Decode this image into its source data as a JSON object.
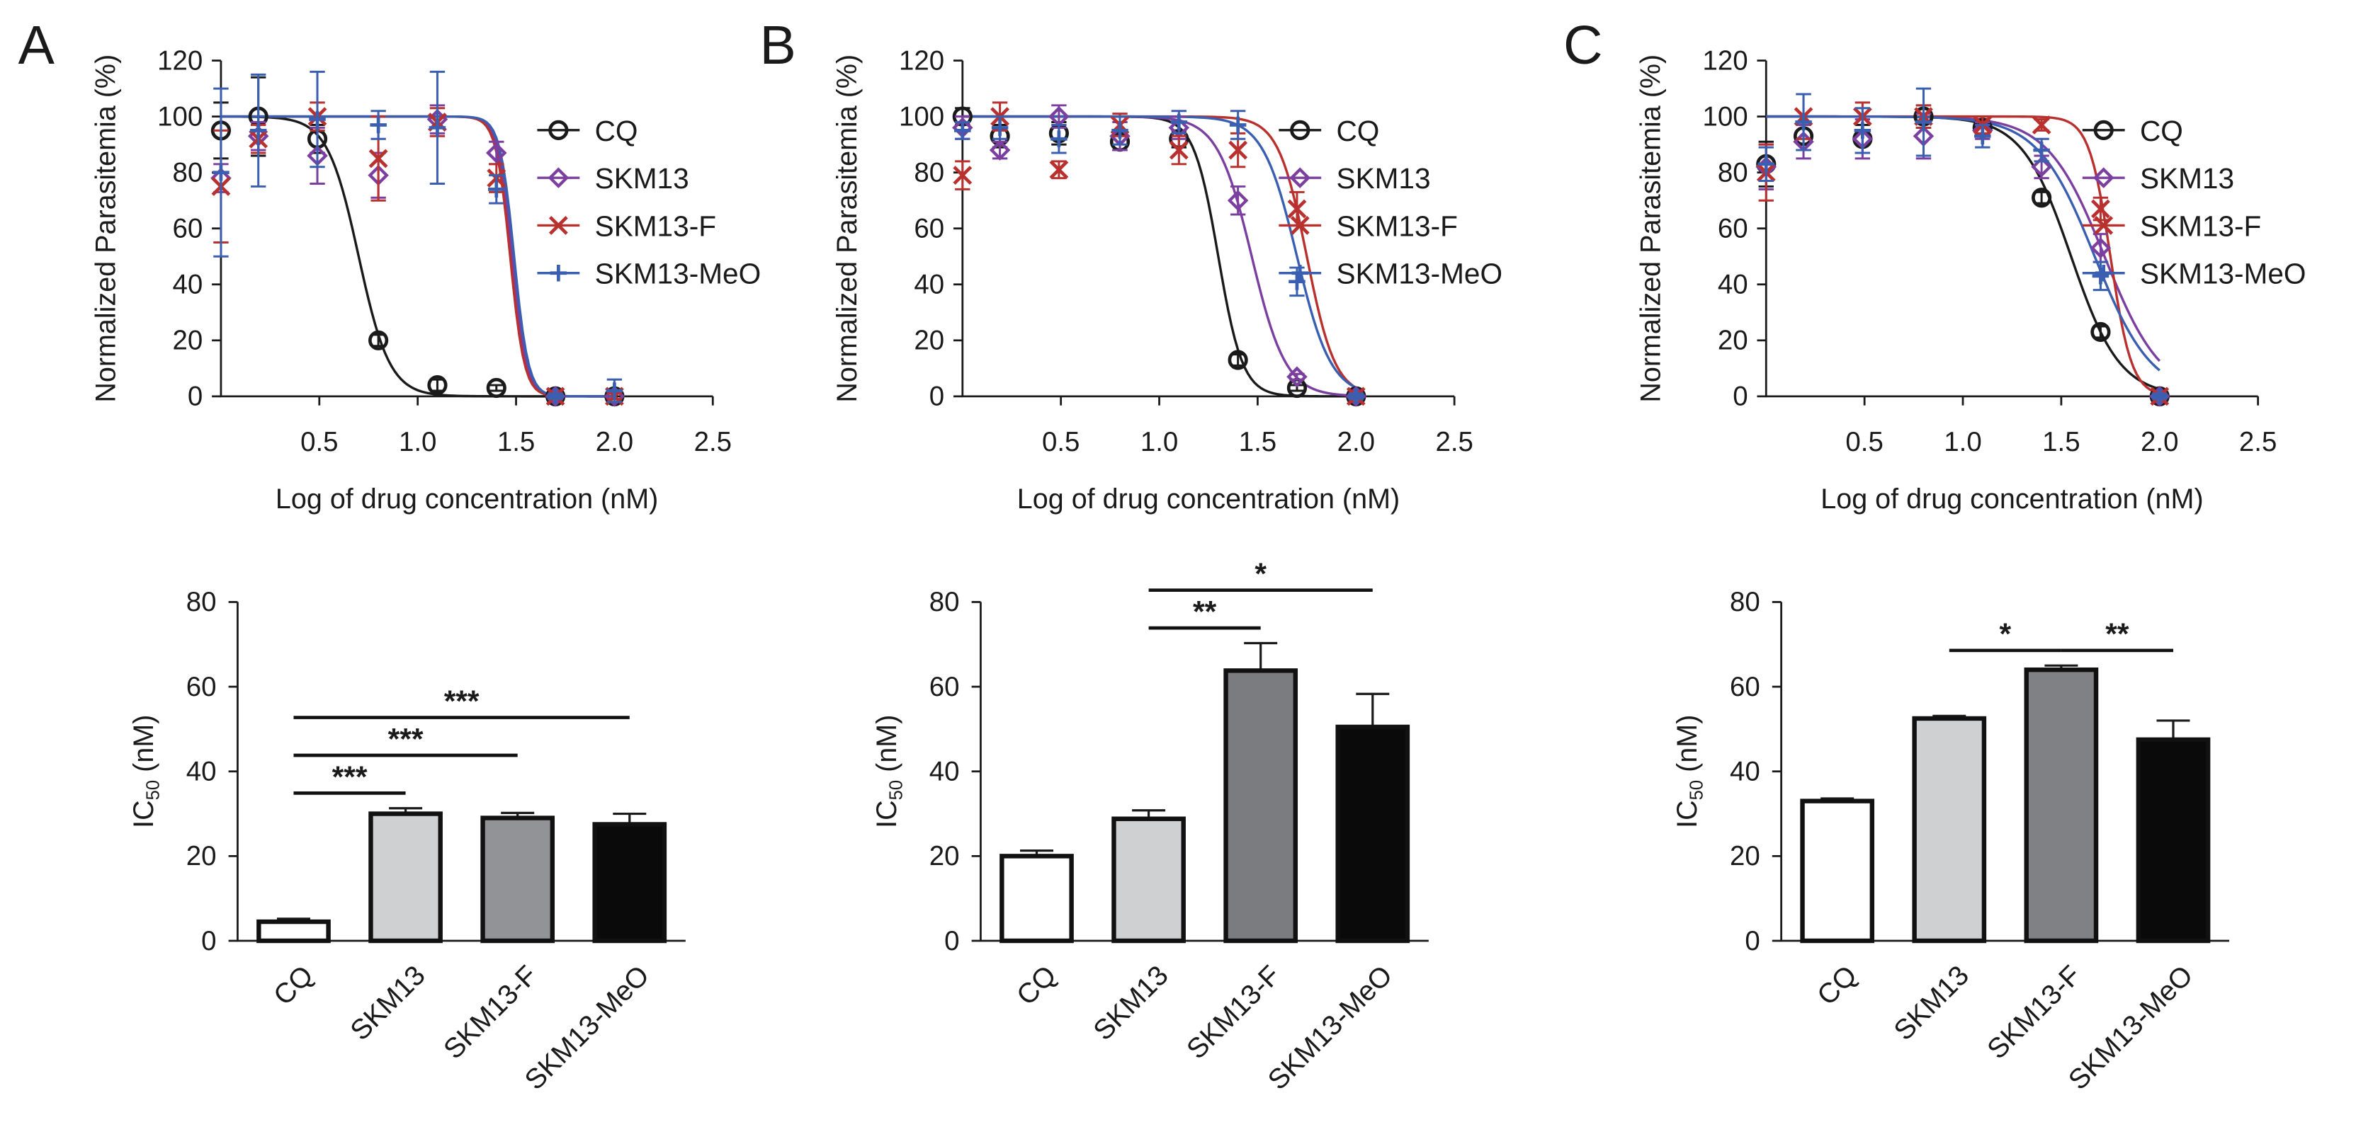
{
  "chart_data": [
    {
      "type": "line",
      "panel": "A",
      "ylabel": "Normalized Parasitemia (%)",
      "xlabel": "Log of drug concentration (nM)",
      "x": [
        0,
        0.19,
        0.49,
        0.8,
        1.1,
        1.4,
        1.7,
        2.0
      ],
      "xlim": [
        0,
        2.5
      ],
      "xticks": [
        0.5,
        {
          "value": 1,
          "label": "1.0"
        },
        1.5,
        {
          "value": 2,
          "label": "2.0"
        },
        2.5
      ],
      "ylim": [
        0,
        120
      ],
      "yticks": [
        0,
        20,
        40,
        60,
        80,
        100,
        120
      ],
      "series": [
        {
          "name": "CQ",
          "color": "#1a1a1a",
          "marker": "circle",
          "values": [
            95,
            100,
            92,
            20,
            4,
            3,
            0,
            0
          ],
          "errors": [
            10,
            14,
            5,
            2,
            2,
            1,
            1,
            1
          ],
          "fit_log_ic50": 0.7,
          "fit_hill": 5.5
        },
        {
          "name": "SKM13",
          "color": "#7b3fa0",
          "marker": "diamond",
          "values": [
            78,
            93,
            86,
            79,
            99,
            87,
            0,
            0
          ],
          "errors": [
            5,
            5,
            10,
            8,
            5,
            4,
            1,
            1
          ],
          "fit_log_ic50": 1.48,
          "fit_hill": 12
        },
        {
          "name": "SKM13-F",
          "color": "#b8312f",
          "marker": "cross",
          "values": [
            75,
            92,
            100,
            85,
            98,
            78,
            0,
            0
          ],
          "errors": [
            20,
            5,
            5,
            15,
            5,
            5,
            1,
            1
          ],
          "fit_log_ic50": 1.47,
          "fit_hill": 12
        },
        {
          "name": "SKM13-MeO",
          "color": "#3a5fb0",
          "marker": "plus",
          "values": [
            80,
            95,
            99,
            97,
            96,
            74,
            0,
            2
          ],
          "errors": [
            30,
            20,
            17,
            5,
            20,
            5,
            1,
            4
          ],
          "fit_log_ic50": 1.49,
          "fit_hill": 12
        }
      ]
    },
    {
      "type": "bar",
      "ylabel": [
        "IC",
        "50",
        " (nM)"
      ],
      "categories": [
        "CQ",
        "SKM13",
        "SKM13-F",
        "SKM13-MeO"
      ],
      "values": [
        4.5,
        30,
        29,
        27.5
      ],
      "errors": [
        0.7,
        1.3,
        1.2,
        2.5
      ],
      "colors": [
        "#ffffff",
        "#cfd0d2",
        "#929397",
        "#0a0a0a"
      ],
      "ylim": [
        0,
        80
      ],
      "yticks": [
        0,
        20,
        40,
        60,
        80
      ],
      "comparisons": [
        {
          "from": 0,
          "to": 1,
          "label": "***"
        },
        {
          "from": 0,
          "to": 2,
          "label": "***"
        },
        {
          "from": 0,
          "to": 3,
          "label": "***"
        }
      ]
    },
    {
      "type": "line",
      "panel": "B",
      "ylabel": "Normalized Parasitemia (%)",
      "xlabel": "Log of drug concentration (nM)",
      "x": [
        0,
        0.19,
        0.49,
        0.8,
        1.1,
        1.4,
        1.7,
        2.0
      ],
      "xlim": [
        0,
        2.5
      ],
      "xticks": [
        0.5,
        {
          "value": 1,
          "label": "1.0"
        },
        1.5,
        {
          "value": 2,
          "label": "2.0"
        },
        2.5
      ],
      "ylim": [
        0,
        120
      ],
      "yticks": [
        0,
        20,
        40,
        60,
        80,
        100,
        120
      ],
      "series": [
        {
          "name": "CQ",
          "color": "#1a1a1a",
          "marker": "circle",
          "values": [
            100,
            93,
            94,
            91,
            92,
            13,
            3,
            0
          ],
          "errors": [
            3,
            4,
            4,
            3,
            3,
            2,
            1,
            1
          ],
          "fit_log_ic50": 1.3,
          "fit_hill": 7
        },
        {
          "name": "SKM13",
          "color": "#7b3fa0",
          "marker": "diamond",
          "values": [
            96,
            88,
            100,
            93,
            96,
            70,
            7,
            0
          ],
          "errors": [
            4,
            3,
            4,
            5,
            4,
            5,
            1,
            1
          ],
          "fit_log_ic50": 1.47,
          "fit_hill": 5
        },
        {
          "name": "SKM13-F",
          "color": "#b8312f",
          "marker": "cross",
          "values": [
            79,
            100,
            81,
            97,
            88,
            88,
            67,
            0
          ],
          "errors": [
            5,
            5,
            3,
            4,
            5,
            6,
            6,
            1
          ],
          "fit_log_ic50": 1.75,
          "fit_hill": 6
        },
        {
          "name": "SKM13-MeO",
          "color": "#3a5fb0",
          "marker": "plus",
          "values": [
            95,
            96,
            92,
            95,
            98,
            97,
            41,
            0
          ],
          "errors": [
            3,
            4,
            5,
            5,
            4,
            5,
            5,
            1
          ],
          "fit_log_ic50": 1.7,
          "fit_hill": 5
        }
      ]
    },
    {
      "type": "bar",
      "ylabel": [
        "IC",
        "50",
        " (nM)"
      ],
      "categories": [
        "CQ",
        "SKM13",
        "SKM13-F",
        "SKM13-MeO"
      ],
      "values": [
        20,
        28.8,
        63.8,
        50.5
      ],
      "errors": [
        1.3,
        2,
        6.5,
        7.8
      ],
      "colors": [
        "#ffffff",
        "#cfd0d2",
        "#7b7c80",
        "#0a0a0a"
      ],
      "ylim": [
        0,
        80
      ],
      "yticks": [
        0,
        20,
        40,
        60,
        80
      ],
      "comparisons": [
        {
          "from": 1,
          "to": 2,
          "label": "**"
        },
        {
          "from": 1,
          "to": 3,
          "label": "*"
        }
      ]
    },
    {
      "type": "line",
      "panel": "C",
      "ylabel": "Normalized Parasitemia (%)",
      "xlabel": "Log of drug concentration (nM)",
      "x": [
        0,
        0.19,
        0.49,
        0.8,
        1.1,
        1.4,
        1.7,
        2.0
      ],
      "xlim": [
        0,
        2.5
      ],
      "xticks": [
        0.5,
        {
          "value": 1,
          "label": "1.0"
        },
        1.5,
        {
          "value": 2,
          "label": "2.0"
        },
        2.5
      ],
      "ylim": [
        0,
        120
      ],
      "yticks": [
        0,
        20,
        40,
        60,
        80,
        100,
        120
      ],
      "series": [
        {
          "name": "CQ",
          "color": "#1a1a1a",
          "marker": "circle",
          "values": [
            83,
            93,
            92,
            100,
            96,
            71,
            23,
            0
          ],
          "errors": [
            8,
            5,
            5,
            4,
            3,
            2,
            2,
            1
          ],
          "fit_log_ic50": 1.55,
          "fit_hill": 3.5
        },
        {
          "name": "SKM13",
          "color": "#7b3fa0",
          "marker": "diamond",
          "values": [
            82,
            91,
            92,
            93,
            95,
            82,
            53,
            0
          ],
          "errors": [
            8,
            6,
            7,
            8,
            3,
            4,
            5,
            1
          ],
          "fit_log_ic50": 1.72,
          "fit_hill": 3
        },
        {
          "name": "SKM13-F",
          "color": "#b8312f",
          "marker": "cross",
          "values": [
            80,
            100,
            100,
            100,
            97,
            97,
            67,
            0
          ],
          "errors": [
            10,
            8,
            5,
            4,
            3,
            2,
            4,
            1
          ],
          "fit_log_ic50": 1.75,
          "fit_hill": 8
        },
        {
          "name": "SKM13-MeO",
          "color": "#3a5fb0",
          "marker": "plus",
          "values": [
            83,
            98,
            95,
            98,
            93,
            88,
            43,
            0
          ],
          "errors": [
            6,
            10,
            8,
            12,
            4,
            4,
            5,
            1
          ],
          "fit_log_ic50": 1.67,
          "fit_hill": 3
        }
      ]
    },
    {
      "type": "bar",
      "ylabel": [
        "IC",
        "50",
        " (nM)"
      ],
      "categories": [
        "CQ",
        "SKM13",
        "SKM13-F",
        "SKM13-MeO"
      ],
      "values": [
        33,
        52.5,
        64,
        47.5
      ],
      "errors": [
        0.6,
        0.6,
        1,
        4.5
      ],
      "colors": [
        "#ffffff",
        "#cfd0d2",
        "#808185",
        "#0a0a0a"
      ],
      "ylim": [
        0,
        80
      ],
      "yticks": [
        0,
        20,
        40,
        60,
        80
      ],
      "comparisons": [
        {
          "from": 1,
          "to": 2,
          "label": "*"
        },
        {
          "from": 2,
          "to": 3,
          "label": "**"
        }
      ]
    }
  ]
}
